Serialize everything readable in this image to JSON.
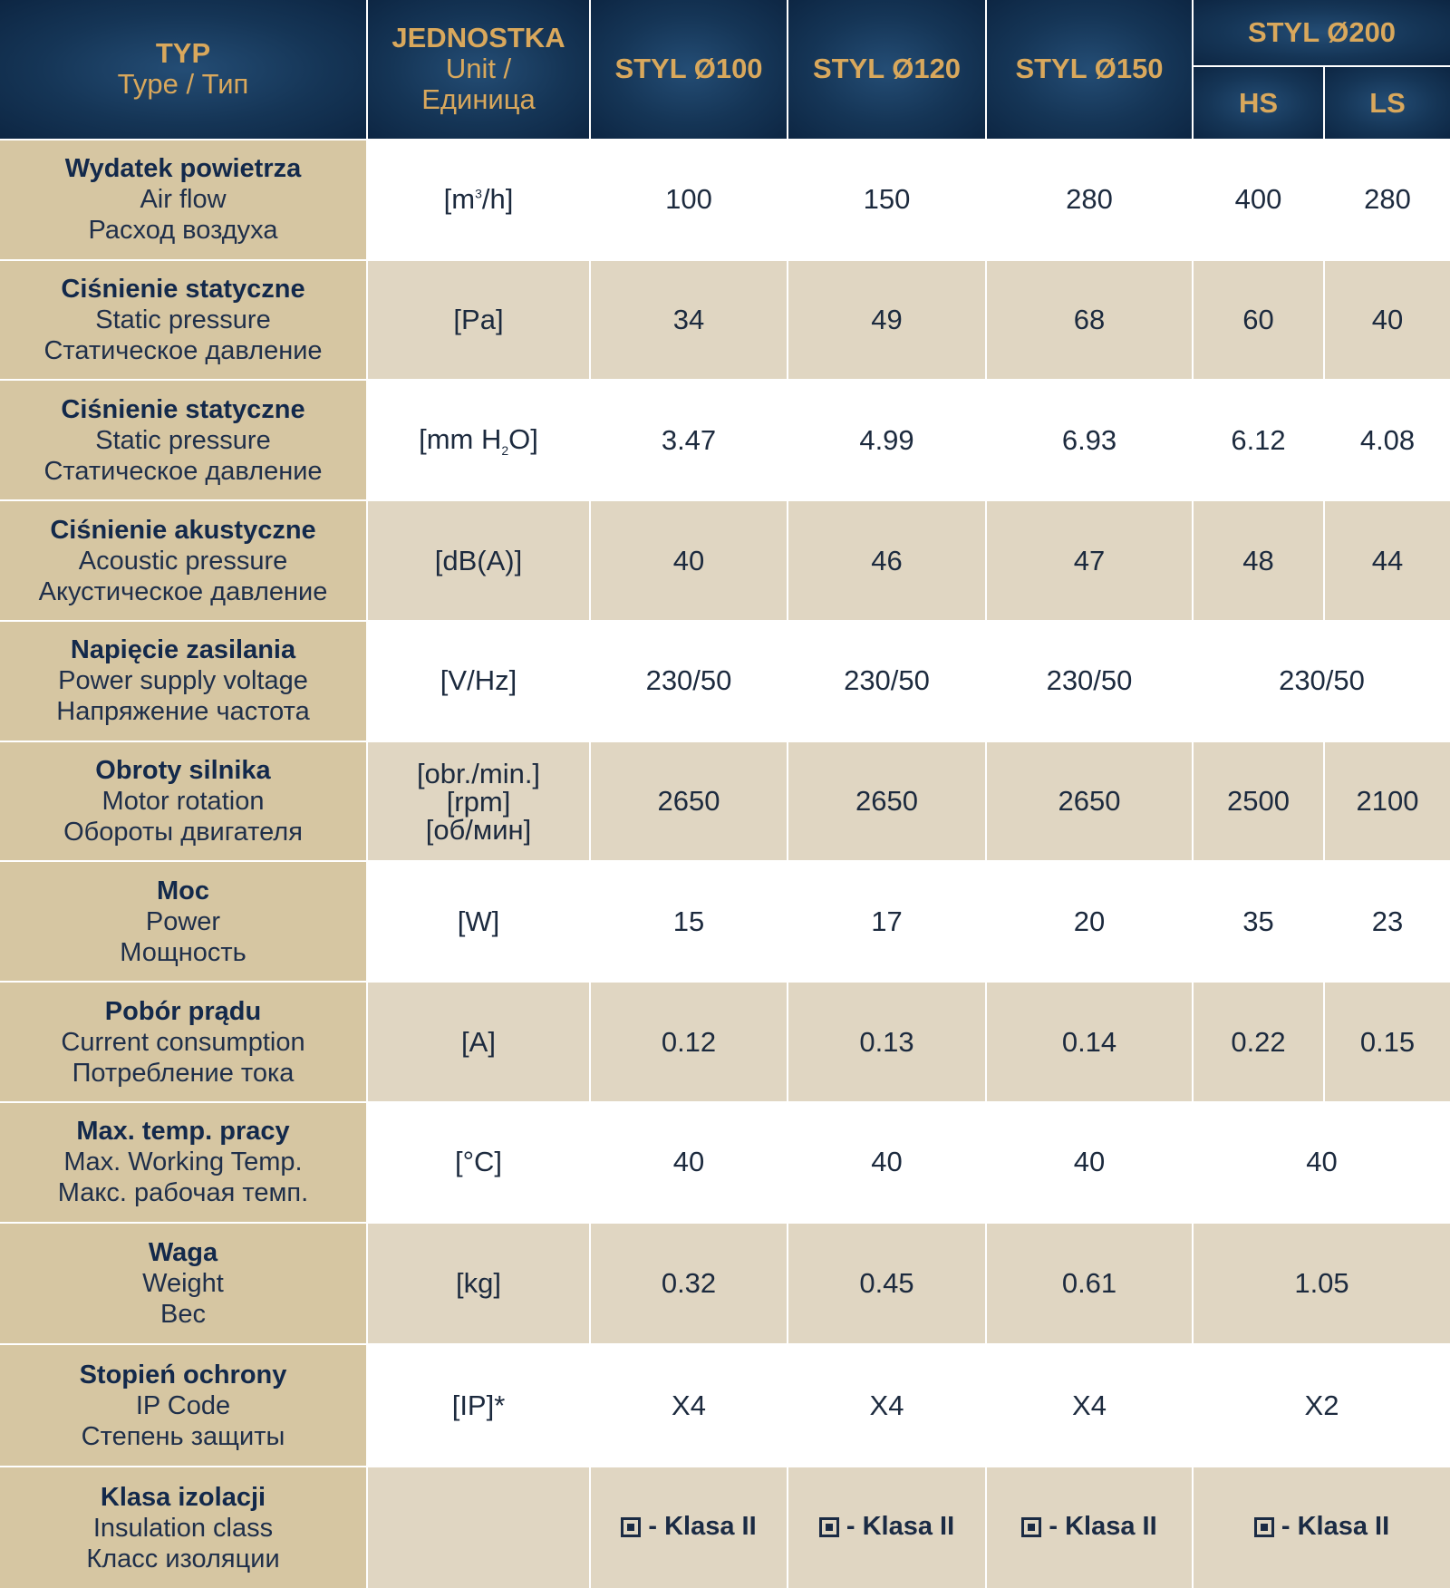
{
  "header": {
    "type_title": "TYP",
    "type_sub": "Type / Тип",
    "unit_title": "JEDNOSTKA",
    "unit_sub1": "Unit /",
    "unit_sub2": "Единица",
    "models": [
      "STYL Ø100",
      "STYL Ø120",
      "STYL Ø150"
    ],
    "model_200": "STYL Ø200",
    "sub_hs": "HS",
    "sub_ls": "LS"
  },
  "rows": [
    {
      "pl": "Wydatek powietrza",
      "en": "Air flow",
      "ru": "Расход воздуха",
      "unit_pre": "[m",
      "unit_sup": "3",
      "unit_post": "/h]",
      "v100": "100",
      "v120": "150",
      "v150": "280",
      "hs": "400",
      "ls": "280"
    },
    {
      "pl": "Ciśnienie statyczne",
      "en": "Static pressure",
      "ru": "Статическое давление",
      "unit": "[Pa]",
      "v100": "34",
      "v120": "49",
      "v150": "68",
      "hs": "60",
      "ls": "40"
    },
    {
      "pl": "Ciśnienie statyczne",
      "en": "Static pressure",
      "ru": "Статическое давление",
      "unit_pre": "[mm H",
      "unit_sub": "2",
      "unit_post": "O]",
      "v100": "3.47",
      "v120": "4.99",
      "v150": "6.93",
      "hs": "6.12",
      "ls": "4.08"
    },
    {
      "pl": "Ciśnienie akustyczne",
      "en": "Acoustic pressure",
      "ru": "Акустическое давление",
      "unit": "[dB(A)]",
      "v100": "40",
      "v120": "46",
      "v150": "47",
      "hs": "48",
      "ls": "44"
    },
    {
      "pl": "Napięcie zasilania",
      "en": "Power supply voltage",
      "ru": "Напряжение частота",
      "unit": "[V/Hz]",
      "v100": "230/50",
      "v120": "230/50",
      "v150": "230/50",
      "merged": "230/50"
    },
    {
      "pl": "Obroty silnika",
      "en": "Motor rotation",
      "ru": "Обороты двигателя",
      "unit1": "[obr./min.]",
      "unit2": "[rpm]",
      "unit3": "[об/мин]",
      "v100": "2650",
      "v120": "2650",
      "v150": "2650",
      "hs": "2500",
      "ls": "2100"
    },
    {
      "pl": "Moc",
      "en": "Power",
      "ru": "Мощность",
      "unit": "[W]",
      "v100": "15",
      "v120": "17",
      "v150": "20",
      "hs": "35",
      "ls": "23"
    },
    {
      "pl": "Pobór prądu",
      "en": "Current consumption",
      "ru": "Потребление тока",
      "unit": "[A]",
      "v100": "0.12",
      "v120": "0.13",
      "v150": "0.14",
      "hs": "0.22",
      "ls": "0.15"
    },
    {
      "pl": "Max. temp. pracy",
      "en": "Max. Working Temp.",
      "ru": "Макс. рабочая темп.",
      "unit": "[°C]",
      "v100": "40",
      "v120": "40",
      "v150": "40",
      "merged": "40"
    },
    {
      "pl": "Waga",
      "en": "Weight",
      "ru": "Вес",
      "unit": "[kg]",
      "v100": "0.32",
      "v120": "0.45",
      "v150": "0.61",
      "merged": "1.05"
    },
    {
      "pl": "Stopień ochrony",
      "en": "IP Code",
      "ru": "Степень защиты",
      "unit": "[IP]*",
      "v100": "X4",
      "v120": "X4",
      "v150": "X4",
      "merged": "X2"
    },
    {
      "pl": "Klasa izolacji",
      "en": "Insulation class",
      "ru": "Класс изоляции",
      "unit": "",
      "v100": "- Klasa II",
      "v120": "- Klasa II",
      "v150": "- Klasa II",
      "merged": "- Klasa II",
      "icon": "double-insulation-icon"
    }
  ]
}
